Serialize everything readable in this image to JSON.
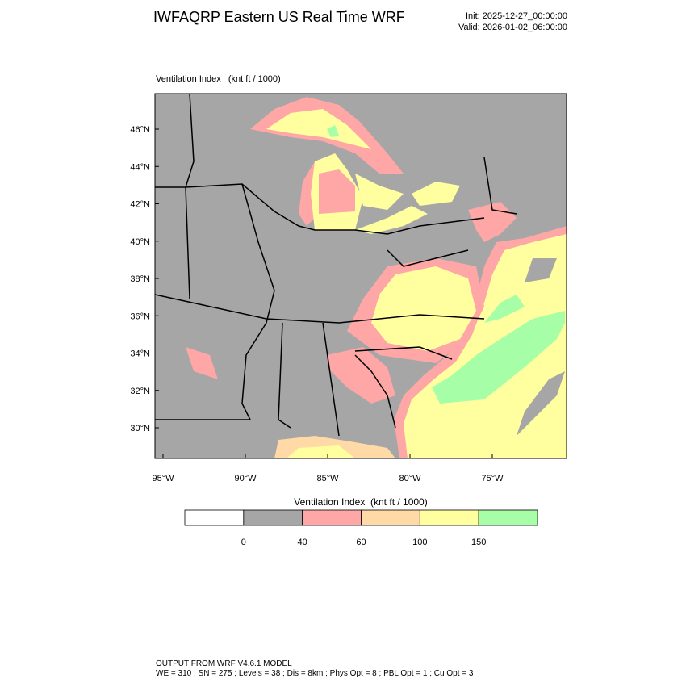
{
  "header": {
    "title": "IWFAQRP Eastern US Real Time WRF",
    "init": "Init: 2025-12-27_00:00:00",
    "valid": "Valid: 2026-01-02_06:00:00"
  },
  "map": {
    "subtitle": "Ventilation Index   (knt ft / 1000)",
    "lat_labels": [
      "46°N",
      "44°N",
      "42°N",
      "40°N",
      "38°N",
      "36°N",
      "34°N",
      "32°N",
      "30°N"
    ],
    "lon_labels": [
      "95°W",
      "90°W",
      "85°W",
      "80°W",
      "75°W"
    ]
  },
  "colorbar": {
    "title": "Ventilation Index  (knt ft / 1000)",
    "colors": [
      "#ffffff",
      "#a6a6a6",
      "#ffa6a6",
      "#ffd9a6",
      "#ffff9f",
      "#a6ffa6"
    ],
    "ticks": [
      0,
      40,
      60,
      100,
      150
    ]
  },
  "footer": {
    "lines": [
      "OUTPUT FROM WRF V4.6.1 MODEL",
      "WE = 310 ; SN = 275 ; Levels = 38 ; Dis = 8km ; Phys Opt = 8 ; PBL Opt = 1 ; Cu Opt = 3"
    ]
  }
}
